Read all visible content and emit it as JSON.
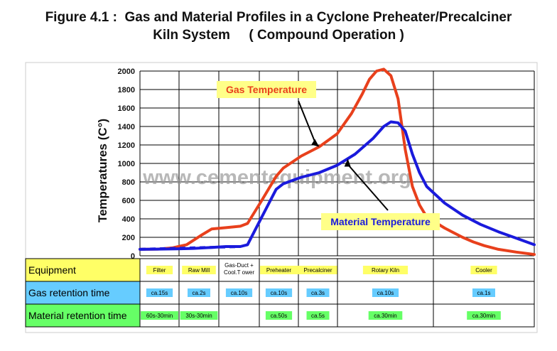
{
  "title_line1": "Figure 4.1 :  Gas and Material Profiles in a Cyclone Preheater/Precalciner",
  "title_line2": "Kiln System     ( Compound Operation )",
  "watermark": "www.cementequipment.org",
  "colors": {
    "gas": "#e8401c",
    "material": "#1a1adc",
    "label_bg": "#ffff88",
    "equipment_row": "#ffff66",
    "gas_row": "#66ccff",
    "material_row": "#66ff66",
    "gridline": "#000000"
  },
  "chart_data": {
    "type": "line",
    "title": "Figure 4.1 :  Gas and Material Profiles in a Cyclone Preheater/Precalciner Kiln System     ( Compound Operation )",
    "ylabel": "Temperatures (C°)",
    "ylim": [
      0,
      2000
    ],
    "yticks": [
      0,
      200,
      400,
      600,
      800,
      1000,
      1200,
      1400,
      1600,
      1800,
      2000
    ],
    "xlabel": "",
    "grid": true,
    "series": [
      {
        "name": "Gas Temperature",
        "color": "#e8401c",
        "x": [
          0.0,
          0.5,
          0.9,
          1.3,
          1.7,
          2.0,
          2.4,
          2.8,
          3.0,
          3.4,
          3.8,
          4.0,
          4.5,
          5.0,
          5.5,
          5.9,
          6.2,
          6.4,
          6.6,
          6.8,
          7.0,
          7.2,
          7.4,
          7.6,
          7.8,
          8.0,
          8.5,
          9.0,
          9.3,
          9.6,
          10.0,
          10.5,
          11.0
        ],
        "y": [
          70,
          72,
          85,
          120,
          220,
          290,
          305,
          320,
          350,
          600,
          860,
          950,
          1080,
          1180,
          1320,
          1540,
          1750,
          1910,
          2000,
          2020,
          1950,
          1700,
          1150,
          750,
          550,
          420,
          300,
          200,
          150,
          110,
          70,
          40,
          15
        ]
      },
      {
        "name": "Material Temperature",
        "color": "#1a1adc",
        "x": [
          0.0,
          0.5,
          1.0,
          1.5,
          2.0,
          2.4,
          2.8,
          3.0,
          3.4,
          3.8,
          4.0,
          4.5,
          5.0,
          5.5,
          6.0,
          6.5,
          6.8,
          7.0,
          7.2,
          7.4,
          7.6,
          7.8,
          8.0,
          8.5,
          9.0,
          9.5,
          10.0,
          10.5,
          11.0
        ],
        "y": [
          70,
          72,
          75,
          80,
          90,
          100,
          100,
          120,
          420,
          720,
          780,
          850,
          900,
          980,
          1100,
          1270,
          1400,
          1450,
          1440,
          1350,
          1100,
          900,
          750,
          570,
          440,
          340,
          260,
          190,
          120
        ]
      }
    ],
    "annotations": [
      {
        "text": "Gas Temperature",
        "color": "#e8401c",
        "arrow_to": {
          "x": 5.0,
          "y": 1180
        }
      },
      {
        "text": "Material Temperature",
        "color": "#1a1adc",
        "arrow_to": {
          "x": 5.8,
          "y": 1050
        }
      }
    ],
    "table": {
      "row_headers": [
        "Equipment",
        "Gas retention time",
        "Material retention time"
      ],
      "columns": [
        {
          "equipment": "Filter",
          "gas": "ca.15s",
          "material": "60s-30min"
        },
        {
          "equipment": "Raw Mill",
          "gas": "ca.2s",
          "material": "30s-30min"
        },
        {
          "equipment": "Gas-Duct + Cool.T ower",
          "gas": "ca.10s",
          "material": ""
        },
        {
          "equipment": "Preheater",
          "gas": "ca.10s",
          "material": "ca.50s"
        },
        {
          "equipment": "Precalciner",
          "gas": "ca.3s",
          "material": "ca.5s"
        },
        {
          "equipment": "Rotary Kiln",
          "gas": "ca.10s",
          "material": "ca.30min"
        },
        {
          "equipment": "Cooler",
          "gas": "ca.1s",
          "material": "ca.30min"
        }
      ]
    }
  }
}
